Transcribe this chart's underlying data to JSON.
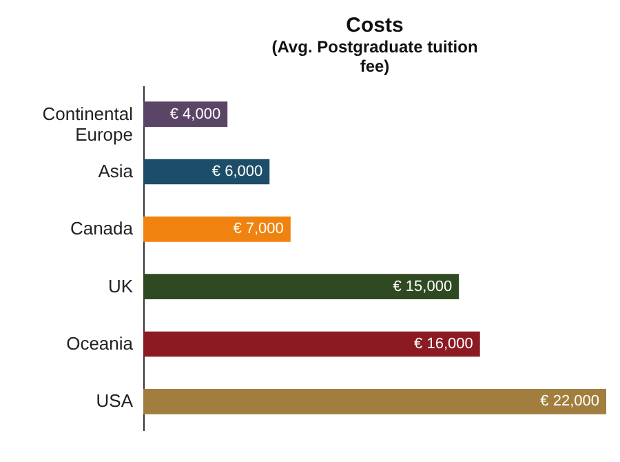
{
  "chart_data": {
    "type": "bar",
    "orientation": "horizontal",
    "title": "Costs",
    "subtitle": "(Avg. Postgraduate tuition fee)",
    "categories": [
      "Continental Europe",
      "Asia",
      "Canada",
      "UK",
      "Oceania",
      "USA"
    ],
    "values": [
      4000,
      6000,
      7000,
      15000,
      16000,
      22000
    ],
    "colors": [
      "#5b4566",
      "#1d4e69",
      "#f0830f",
      "#2f4a22",
      "#8c1a22",
      "#a17e3e"
    ],
    "value_labels": [
      "€ 4,000",
      "€ 6,000",
      "€ 7,000",
      "€ 15,000",
      "€ 16,000",
      "€ 22,000"
    ]
  }
}
